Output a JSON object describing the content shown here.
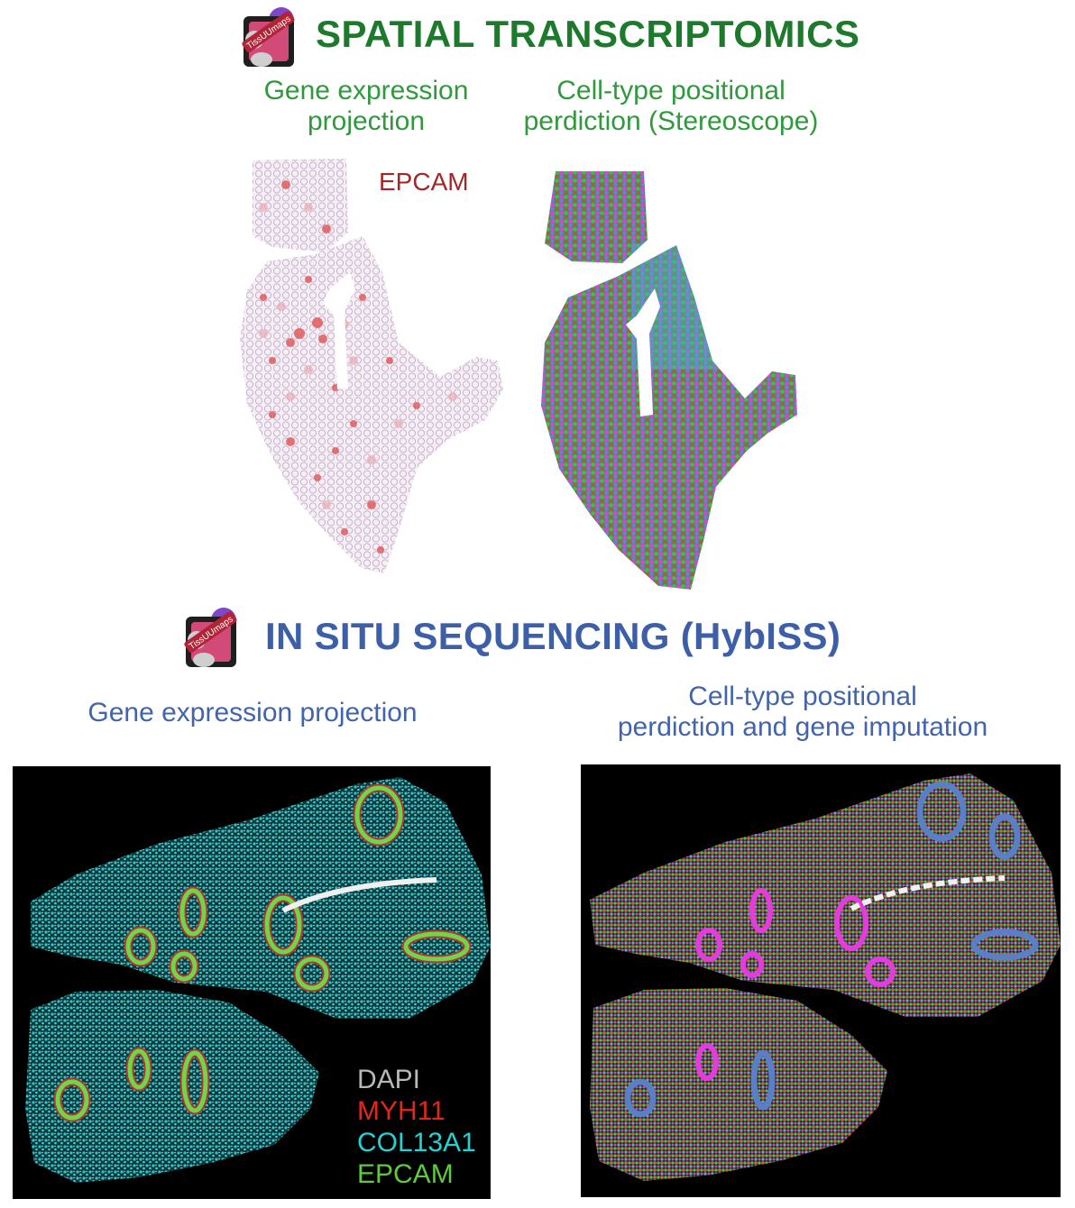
{
  "spatial_transcriptomics": {
    "title": "SPATIAL TRANSCRIPTOMICS",
    "title_color": "#1d7a2c",
    "left_caption_line1": "Gene expression",
    "left_caption_line2": "projection",
    "right_caption_line1": "Cell-type positional",
    "right_caption_line2": "perdiction (Stereoscope)",
    "gene_label": "EPCAM"
  },
  "in_situ_sequencing": {
    "title": "IN SITU SEQUENCING (HybISS)",
    "title_color": "#3d5fa8",
    "left_caption": "Gene expression projection",
    "right_caption_line1": "Cell-type positional",
    "right_caption_line2": "perdiction and gene imputation",
    "legend": [
      {
        "label": "DAPI",
        "color": "#b8b8b8"
      },
      {
        "label": "MYH11",
        "color": "#e0271b"
      },
      {
        "label": "COL13A1",
        "color": "#22d3d3"
      },
      {
        "label": "EPCAM",
        "color": "#5ecb3e"
      }
    ]
  },
  "logo": {
    "icon": "tissuumaps-logo",
    "text": "TissUUmaps"
  }
}
